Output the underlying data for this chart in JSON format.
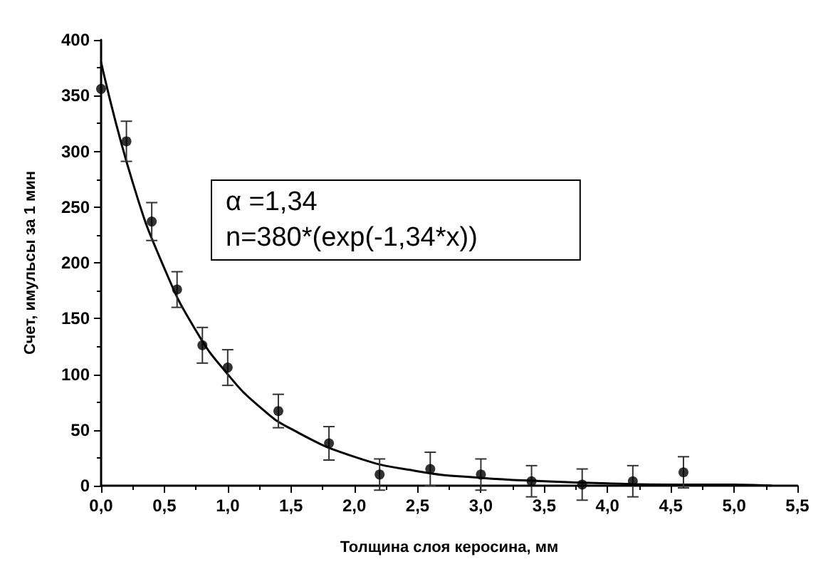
{
  "chart_data": {
    "type": "scatter",
    "xlabel": "Толщина слоя керосина, мм",
    "ylabel": "Счет, имульсы за 1 мин",
    "annotations": [
      "α =1,34",
      "n=380*(exp(-1,34*x))"
    ],
    "series": [
      {
        "color": "#000000",
        "x": [
          0,
          0.2,
          0.4,
          0.6,
          0.8,
          1.0,
          1.4,
          1.8,
          2.2,
          2.6,
          3.0,
          3.4,
          3.8,
          4.2,
          4.6
        ],
        "values": [
          356,
          309,
          237,
          176,
          126,
          106,
          67,
          38,
          10,
          15,
          10,
          4,
          1,
          4,
          12
        ],
        "errors": [
          null,
          18,
          17,
          16,
          16,
          16,
          15,
          15,
          14,
          15,
          14,
          14,
          14,
          14,
          14
        ],
        "marker": "circle"
      },
      {
        "type": "line",
        "color": "#000000",
        "x": [
          0,
          0.25,
          0.5,
          0.75,
          1,
          1.25,
          1.5,
          2,
          2.5,
          3,
          3.5,
          4,
          4.5,
          5,
          5.3
        ],
        "values": [
          380,
          272,
          195,
          139,
          100,
          71,
          51,
          26,
          13,
          7,
          4,
          2,
          1,
          1,
          0
        ],
        "marker": "none",
        "line_style": "solid"
      }
    ],
    "xlim": [
      0,
      5.5
    ],
    "xticks": [
      {
        "value": 0,
        "label": "0,0"
      },
      {
        "value": 0.5,
        "label": "0,5"
      },
      {
        "value": 1,
        "label": "1,0"
      },
      {
        "value": 1.5,
        "label": "1,5"
      },
      {
        "value": 2,
        "label": "2,0"
      },
      {
        "value": 2.5,
        "label": "2,5"
      },
      {
        "value": 3,
        "label": "3,0"
      },
      {
        "value": 3.5,
        "label": "3,5"
      },
      {
        "value": 4,
        "label": "4,0"
      },
      {
        "value": 4.5,
        "label": "4,5"
      },
      {
        "value": 5,
        "label": "5,0"
      },
      {
        "value": 5.5,
        "label": "5,5"
      }
    ],
    "ylim": [
      0,
      400
    ],
    "yticks": [
      0,
      50,
      100,
      150,
      200,
      250,
      300,
      350,
      400
    ],
    "grid": false
  }
}
